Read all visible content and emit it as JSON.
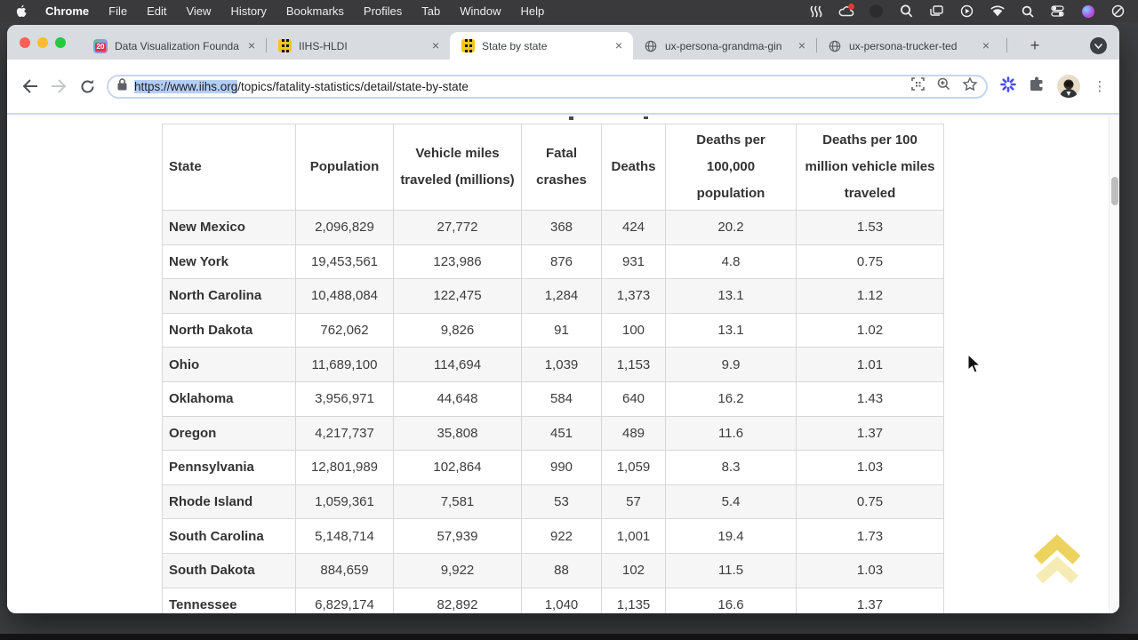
{
  "menu_bar": {
    "app_name": "Chrome",
    "items": [
      "File",
      "Edit",
      "View",
      "History",
      "Bookmarks",
      "Profiles",
      "Tab",
      "Window",
      "Help"
    ],
    "status_icons": [
      "waves-icon",
      "creative-cloud-icon",
      "app-dot-icon",
      "zoom-lens-icon",
      "windows-stack-icon",
      "screen-recording-icon",
      "wifi-icon",
      "spotlight-search-icon",
      "control-center-icon",
      "siri-icon",
      "do-not-disturb-icon"
    ]
  },
  "tab_bar": {
    "tabs": [
      {
        "label": "Data Visualization Founda",
        "favicon": "calendar-20",
        "badge": "20",
        "active": false
      },
      {
        "label": "IIHS-HLDI",
        "favicon": "iihs-road",
        "active": false
      },
      {
        "label": "State by state",
        "favicon": "iihs-road",
        "active": true
      },
      {
        "label": "ux-persona-grandma-gin",
        "favicon": "globe",
        "active": false
      },
      {
        "label": "ux-persona-trucker-ted",
        "favicon": "globe",
        "active": false
      }
    ],
    "new_tab_label": "+",
    "close_label": "×"
  },
  "toolbar": {
    "url_selected": "https://www.iihs.org",
    "url_rest": "/topics/fatality-statistics/detail/state-by-state"
  },
  "page": {
    "table": {
      "headers": [
        "State",
        "Population",
        "Vehicle miles traveled (millions)",
        "Fatal crashes",
        "Deaths",
        "Deaths per 100,000 population",
        "Deaths per 100 million vehicle miles traveled"
      ],
      "rows": [
        [
          "New Mexico",
          "2,096,829",
          "27,772",
          "368",
          "424",
          "20.2",
          "1.53"
        ],
        [
          "New York",
          "19,453,561",
          "123,986",
          "876",
          "931",
          "4.8",
          "0.75"
        ],
        [
          "North Carolina",
          "10,488,084",
          "122,475",
          "1,284",
          "1,373",
          "13.1",
          "1.12"
        ],
        [
          "North Dakota",
          "762,062",
          "9,826",
          "91",
          "100",
          "13.1",
          "1.02"
        ],
        [
          "Ohio",
          "11,689,100",
          "114,694",
          "1,039",
          "1,153",
          "9.9",
          "1.01"
        ],
        [
          "Oklahoma",
          "3,956,971",
          "44,648",
          "584",
          "640",
          "16.2",
          "1.43"
        ],
        [
          "Oregon",
          "4,217,737",
          "35,808",
          "451",
          "489",
          "11.6",
          "1.37"
        ],
        [
          "Pennsylvania",
          "12,801,989",
          "102,864",
          "990",
          "1,059",
          "8.3",
          "1.03"
        ],
        [
          "Rhode Island",
          "1,059,361",
          "7,581",
          "53",
          "57",
          "5.4",
          "0.75"
        ],
        [
          "South Carolina",
          "5,148,714",
          "57,939",
          "922",
          "1,001",
          "19.4",
          "1.73"
        ],
        [
          "South Dakota",
          "884,659",
          "9,922",
          "88",
          "102",
          "11.5",
          "1.03"
        ],
        [
          "Tennessee",
          "6,829,174",
          "82,892",
          "1,040",
          "1,135",
          "16.6",
          "1.37"
        ]
      ]
    }
  },
  "colors": {
    "accent_selection": "#b3cdf5",
    "extension_burst": "#4b4ded",
    "scroll_top_gold": "#e9cf5f",
    "row_alt": "#f6f6f6",
    "table_border": "#d8d8d8"
  }
}
